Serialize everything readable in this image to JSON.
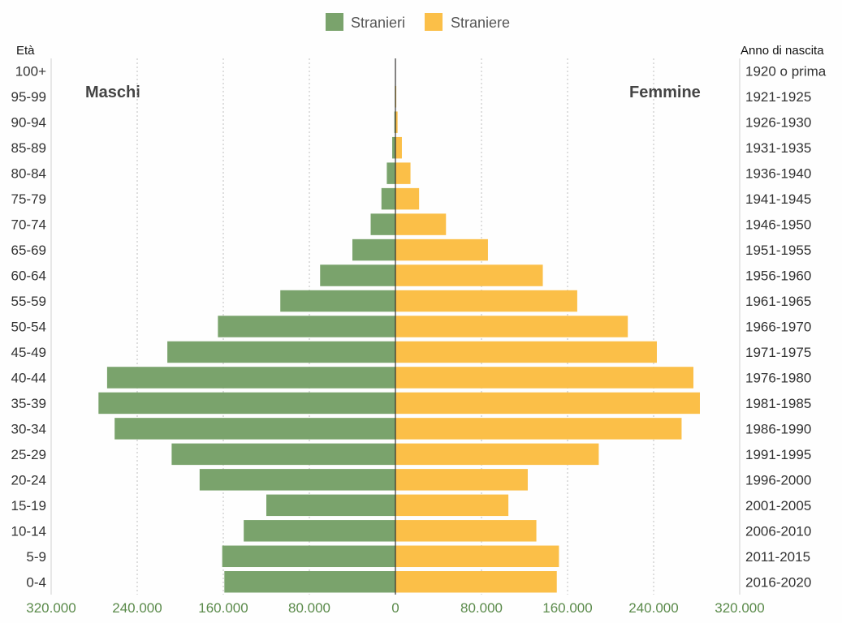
{
  "chart_data": {
    "type": "bar",
    "orientation": "horizontal-population-pyramid",
    "age_axis_title": "Età",
    "birth_axis_title": "Anno di nascita",
    "left_label": "Maschi",
    "right_label": "Femmine",
    "age_groups": [
      "0-4",
      "5-9",
      "10-14",
      "15-19",
      "20-24",
      "25-29",
      "30-34",
      "35-39",
      "40-44",
      "45-49",
      "50-54",
      "55-59",
      "60-64",
      "65-69",
      "70-74",
      "75-79",
      "80-84",
      "85-89",
      "90-94",
      "95-99",
      "100+"
    ],
    "birth_years": [
      "2016-2020",
      "2011-2015",
      "2006-2010",
      "2001-2005",
      "1996-2000",
      "1991-1995",
      "1986-1990",
      "1981-1985",
      "1976-1980",
      "1971-1975",
      "1966-1970",
      "1961-1965",
      "1956-1960",
      "1951-1955",
      "1946-1950",
      "1941-1945",
      "1936-1940",
      "1931-1935",
      "1926-1930",
      "1921-1925",
      "1920 o prima"
    ],
    "xlim": [
      -320000,
      320000
    ],
    "x_ticks": [
      -320000,
      -240000,
      -160000,
      -80000,
      0,
      80000,
      160000,
      240000,
      320000
    ],
    "x_tick_labels": [
      "320.000",
      "240.000",
      "160.000",
      "80.000",
      "0",
      "80.000",
      "160.000",
      "240.000",
      "320.000"
    ],
    "legend_position": "top-center",
    "series": [
      {
        "name": "Stranieri",
        "side": "left",
        "color": "#7aa36c",
        "values": [
          159000,
          161000,
          141000,
          120000,
          182000,
          208000,
          261000,
          276000,
          268000,
          212000,
          165000,
          107000,
          70000,
          40000,
          23000,
          13000,
          8000,
          3000,
          1000,
          500,
          300
        ]
      },
      {
        "name": "Straniere",
        "side": "right",
        "color": "#fbbf48",
        "values": [
          150000,
          152000,
          131000,
          105000,
          123000,
          189000,
          266000,
          283000,
          277000,
          243000,
          216000,
          169000,
          137000,
          86000,
          47000,
          22000,
          14000,
          6000,
          2000,
          800,
          400
        ]
      }
    ]
  }
}
